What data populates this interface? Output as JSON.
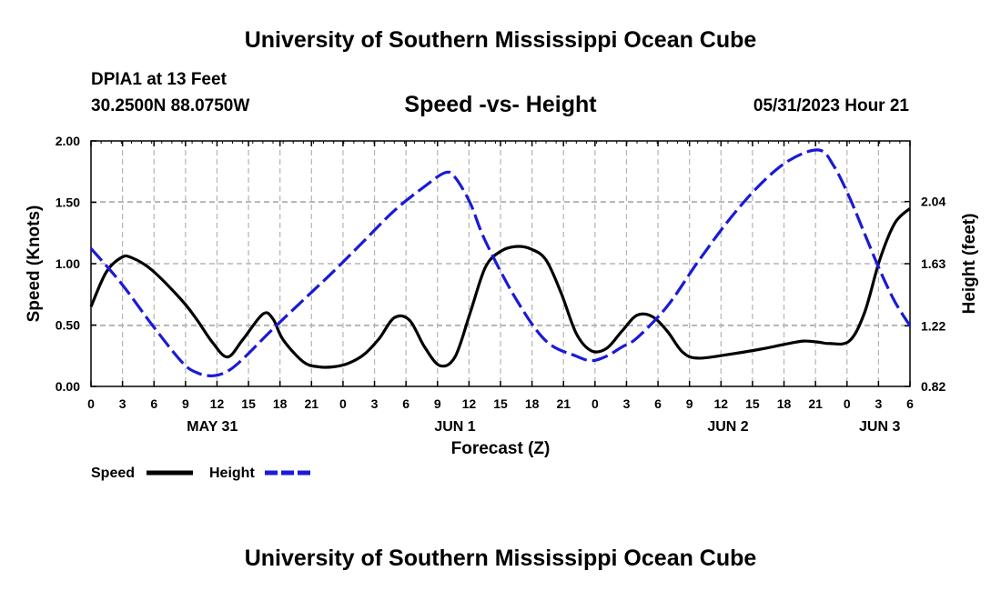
{
  "header": {
    "title": "University of Southern Mississippi Ocean Cube",
    "station": "DPIA1 at 13 Feet",
    "coords": "30.2500N  88.0750W",
    "subtitle": "Speed -vs- Height",
    "datetime": "05/31/2023 Hour 21"
  },
  "footer": {
    "title": "University of Southern Mississippi Ocean Cube"
  },
  "chart_data": {
    "type": "line",
    "title": "Speed -vs- Height",
    "xlabel": "Forecast (Z)",
    "ylabel": "Speed (Knots)",
    "y2label": "Height (feet)",
    "ylim": [
      0,
      2
    ],
    "y2lim": [
      0.82,
      2.44
    ],
    "grid": true,
    "legend_position": "bottom-left",
    "x_hours_range": [
      0,
      81
    ],
    "x_tick_labels": [
      "0",
      "3",
      "6",
      "9",
      "12",
      "15",
      "18",
      "21",
      "0",
      "3",
      "6",
      "9",
      "12",
      "15",
      "18",
      "21",
      "0",
      "3",
      "6",
      "9",
      "12",
      "15",
      "18",
      "21",
      "0",
      "3",
      "6"
    ],
    "day_labels": [
      {
        "label": "MAY 31",
        "hour": 12
      },
      {
        "label": "JUN 1",
        "hour": 36
      },
      {
        "label": "JUN 2",
        "hour": 63
      },
      {
        "label": "JUN 3",
        "hour": 78
      }
    ],
    "y_ticks": [
      "0.00",
      "0.50",
      "1.00",
      "1.50",
      "2.00"
    ],
    "y_tick_values": [
      0,
      0.5,
      1.0,
      1.5,
      2.0
    ],
    "y2_ticks": [
      "0.82",
      "1.22",
      "1.63",
      "2.04"
    ],
    "y2_tick_values": [
      0.82,
      1.22,
      1.63,
      2.04
    ],
    "series": [
      {
        "name": "Speed",
        "color": "#000000",
        "dash": false,
        "axis": "left",
        "x": [
          0,
          1.5,
          3,
          4,
          6,
          9,
          10.5,
          12,
          13.5,
          15,
          17,
          18,
          19,
          21,
          22.5,
          24,
          25.5,
          27,
          28.5,
          30,
          31.5,
          33,
          34.5,
          36,
          37.5,
          39,
          40.5,
          42,
          43.5,
          45,
          46.5,
          48,
          49.5,
          51,
          52.5,
          54,
          55.5,
          57,
          58.5,
          60,
          63,
          66,
          69,
          70.5,
          72,
          73,
          75,
          76.5,
          78,
          79.5,
          81
        ],
        "values": [
          0.65,
          0.93,
          1.05,
          1.05,
          0.95,
          0.7,
          0.54,
          0.36,
          0.24,
          0.38,
          0.59,
          0.55,
          0.38,
          0.2,
          0.16,
          0.16,
          0.19,
          0.26,
          0.39,
          0.56,
          0.54,
          0.32,
          0.17,
          0.24,
          0.6,
          0.97,
          1.1,
          1.14,
          1.12,
          1.03,
          0.76,
          0.43,
          0.29,
          0.31,
          0.45,
          0.58,
          0.57,
          0.45,
          0.28,
          0.23,
          0.26,
          0.3,
          0.35,
          0.37,
          0.36,
          0.35,
          0.37,
          0.6,
          1.03,
          1.33,
          1.45
        ]
      },
      {
        "name": "Height",
        "color": "#1a1ad6",
        "dash": true,
        "axis": "right",
        "x": [
          0,
          3,
          6,
          9,
          10.5,
          12,
          13.5,
          15,
          18,
          21,
          24,
          27,
          30,
          33,
          35,
          36,
          37.5,
          39,
          42,
          45,
          48,
          49.5,
          51,
          52.5,
          54,
          57,
          60,
          63,
          66,
          69,
          72,
          73.5,
          75,
          76.5,
          78,
          79.5,
          81
        ],
        "values": [
          1.73,
          1.5,
          1.23,
          0.98,
          0.91,
          0.89,
          0.92,
          1.0,
          1.2,
          1.39,
          1.58,
          1.78,
          1.98,
          2.14,
          2.23,
          2.2,
          2.03,
          1.78,
          1.4,
          1.12,
          1.02,
          0.99,
          1.02,
          1.08,
          1.14,
          1.35,
          1.64,
          1.91,
          2.14,
          2.31,
          2.38,
          2.27,
          2.07,
          1.83,
          1.59,
          1.38,
          1.22
        ]
      }
    ]
  }
}
